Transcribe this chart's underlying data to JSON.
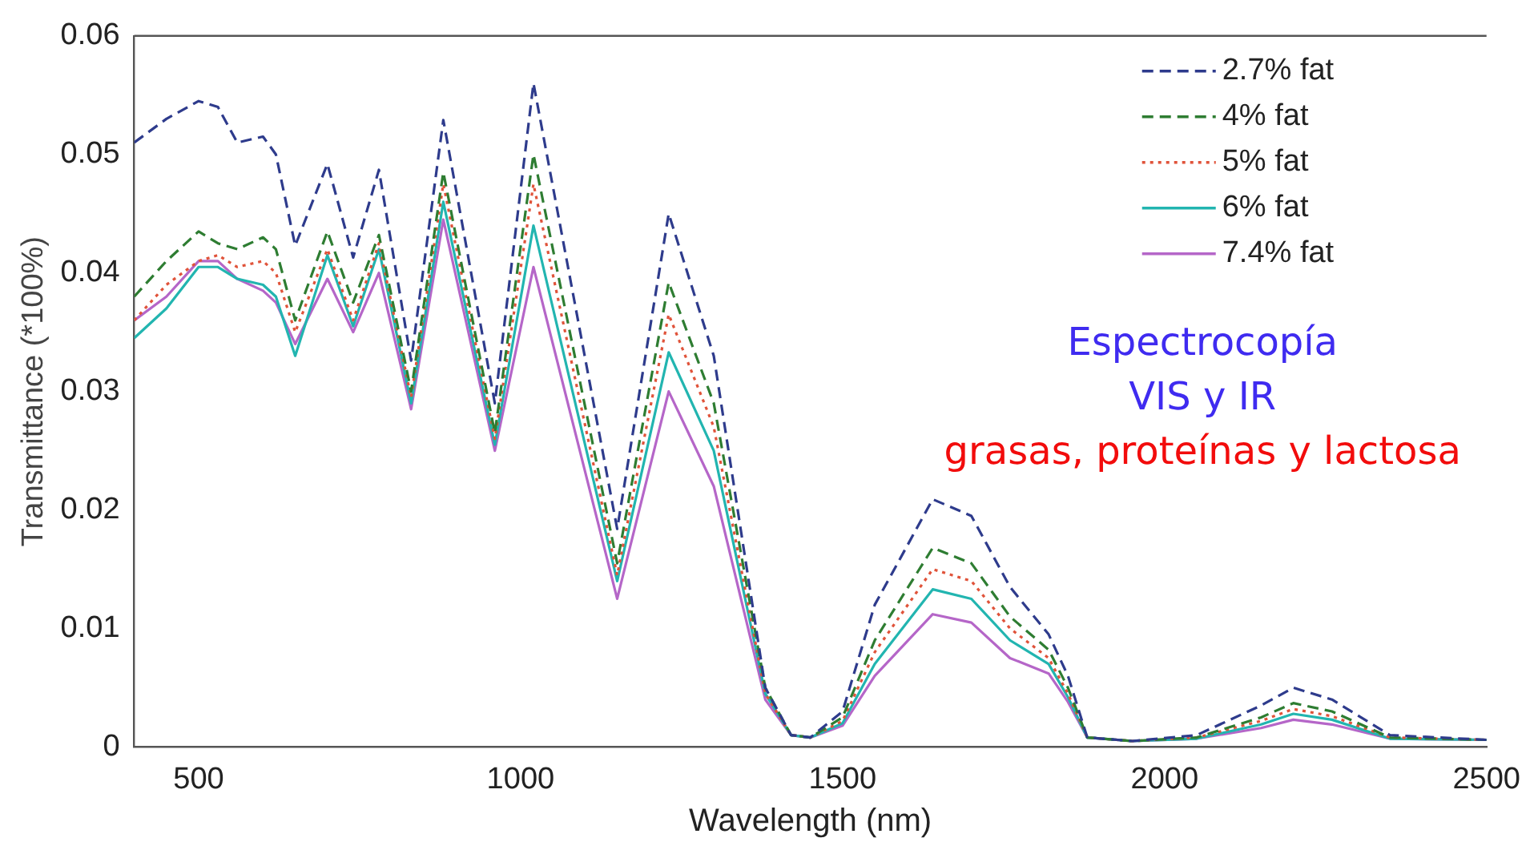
{
  "chart_data": {
    "type": "line",
    "xlabel": "Wavelength (nm)",
    "ylabel": "Transmittance (*100%)",
    "x": [
      400,
      450,
      500,
      530,
      560,
      600,
      620,
      650,
      700,
      740,
      780,
      830,
      880,
      960,
      1020,
      1150,
      1230,
      1300,
      1380,
      1420,
      1450,
      1500,
      1550,
      1640,
      1700,
      1760,
      1820,
      1850,
      1880,
      1950,
      2050,
      2150,
      2200,
      2260,
      2350,
      2500
    ],
    "series": [
      {
        "name": "2.7% fat",
        "color": "#2e3b8c",
        "line_style": "dashed",
        "values": [
          0.051,
          0.053,
          0.0545,
          0.054,
          0.051,
          0.0515,
          0.05,
          0.0423,
          0.0492,
          0.0413,
          0.0487,
          0.0326,
          0.0529,
          0.029,
          0.056,
          0.0184,
          0.045,
          0.033,
          0.005,
          0.001,
          0.0008,
          0.003,
          0.012,
          0.0209,
          0.0195,
          0.0135,
          0.0095,
          0.006,
          0.0008,
          0.0005,
          0.001,
          0.0035,
          0.005,
          0.004,
          0.001,
          0.0006
        ]
      },
      {
        "name": "4% fat",
        "color": "#2e7d32",
        "line_style": "dashed",
        "values": [
          0.038,
          0.041,
          0.0435,
          0.0425,
          0.042,
          0.043,
          0.042,
          0.036,
          0.0435,
          0.0375,
          0.0432,
          0.03,
          0.0485,
          0.0265,
          0.05,
          0.0155,
          0.0392,
          0.029,
          0.005,
          0.001,
          0.0008,
          0.0025,
          0.009,
          0.0168,
          0.0155,
          0.011,
          0.0082,
          0.005,
          0.0008,
          0.0005,
          0.0008,
          0.0025,
          0.0037,
          0.003,
          0.0008,
          0.0006
        ]
      },
      {
        "name": "5% fat",
        "color": "#e0533a",
        "line_style": "dotted",
        "values": [
          0.036,
          0.039,
          0.041,
          0.0415,
          0.0405,
          0.041,
          0.04,
          0.035,
          0.042,
          0.036,
          0.0425,
          0.0295,
          0.0475,
          0.026,
          0.0475,
          0.0145,
          0.0365,
          0.027,
          0.0045,
          0.001,
          0.0008,
          0.0022,
          0.008,
          0.015,
          0.014,
          0.01,
          0.0075,
          0.0045,
          0.0008,
          0.0005,
          0.0008,
          0.0022,
          0.0032,
          0.0026,
          0.0008,
          0.0006
        ]
      },
      {
        "name": "6% fat",
        "color": "#22b5b0",
        "line_style": "solid",
        "values": [
          0.0345,
          0.037,
          0.0405,
          0.0405,
          0.0395,
          0.039,
          0.038,
          0.033,
          0.0415,
          0.0355,
          0.042,
          0.029,
          0.046,
          0.0255,
          0.044,
          0.014,
          0.0333,
          0.025,
          0.0045,
          0.001,
          0.0008,
          0.002,
          0.007,
          0.0133,
          0.0125,
          0.009,
          0.007,
          0.0042,
          0.0008,
          0.0005,
          0.0007,
          0.0019,
          0.0028,
          0.0023,
          0.0007,
          0.0006
        ]
      },
      {
        "name": "7.4% fat",
        "color": "#b566c8",
        "line_style": "solid",
        "values": [
          0.036,
          0.038,
          0.041,
          0.041,
          0.0395,
          0.0385,
          0.0375,
          0.034,
          0.0395,
          0.035,
          0.04,
          0.0285,
          0.0445,
          0.025,
          0.0405,
          0.0125,
          0.03,
          0.022,
          0.004,
          0.001,
          0.0008,
          0.0018,
          0.006,
          0.0112,
          0.0105,
          0.0075,
          0.0062,
          0.0038,
          0.0008,
          0.0005,
          0.0007,
          0.0016,
          0.0023,
          0.0019,
          0.0007,
          0.0006
        ]
      }
    ],
    "xlim": [
      400,
      2500
    ],
    "xticks": [
      500,
      1000,
      1500,
      2000,
      2500
    ],
    "ylim": [
      0,
      0.06
    ],
    "yticks": [
      0,
      0.01,
      0.02,
      0.03,
      0.04,
      0.05,
      0.06
    ],
    "grid": false,
    "legend": "top right",
    "marker": "none",
    "annotations": [
      "Espectrocopía",
      "VIS y IR",
      "grasas, proteínas y lactosa"
    ]
  }
}
